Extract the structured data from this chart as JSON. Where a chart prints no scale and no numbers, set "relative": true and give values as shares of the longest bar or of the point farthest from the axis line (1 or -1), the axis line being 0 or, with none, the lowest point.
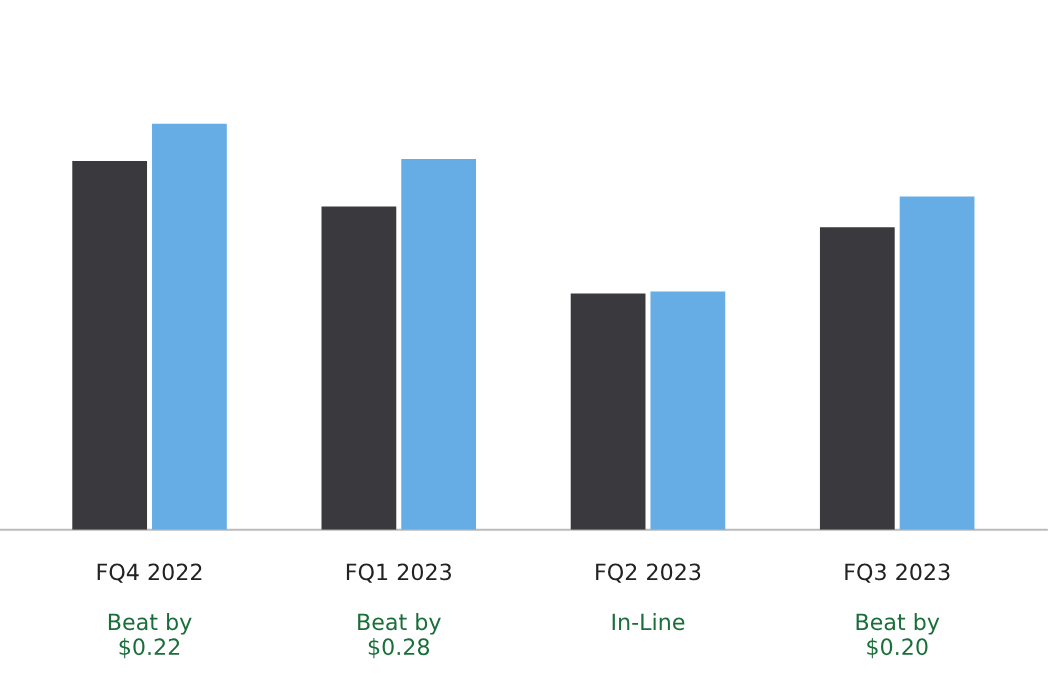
{
  "chart_data": {
    "type": "bar",
    "relative": true,
    "categories": [
      "FQ4 2022",
      "FQ1 2023",
      "FQ2 2023",
      "FQ3 2023"
    ],
    "series": [
      {
        "color": "#3a3a3e",
        "values": [
          0.908,
          0.796,
          0.582,
          0.745
        ]
      },
      {
        "color": "#66ade6",
        "values": [
          1,
          0.913,
          0.587,
          0.821
        ]
      }
    ],
    "annotations": [
      "Beat by\n$0.22",
      "Beat by\n$0.28",
      "In-Line",
      "Beat by\n$0.20"
    ]
  }
}
